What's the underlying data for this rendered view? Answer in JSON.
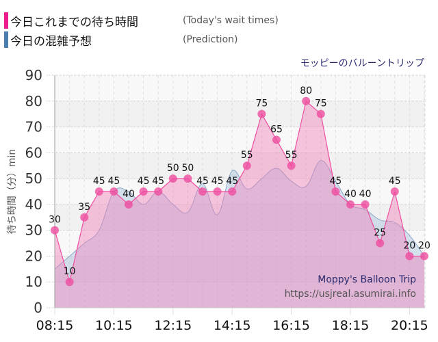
{
  "legend": {
    "items": [
      {
        "label_jp": "今日これまでの待ち時間",
        "label_en": "(Today's wait times)",
        "color": "#ee1c8c"
      },
      {
        "label_jp": "今日の混雑予想",
        "label_en": "(Prediction)",
        "color": "#4a7fb0"
      }
    ]
  },
  "attraction_name_jp": "モッピーのバルーントリップ",
  "watermark": {
    "name_en": "Moppy's Balloon Trip",
    "url": "https://usjreal.asumirai.info"
  },
  "chart_data": {
    "type": "area",
    "title": "モッピーのバルーントリップ",
    "ylabel": "待ち時間（分）min",
    "xlabel": "",
    "ylim": [
      0,
      90
    ],
    "yticks": [
      0,
      10,
      20,
      30,
      40,
      50,
      60,
      70,
      80,
      90
    ],
    "xtick_labels": [
      "08:15",
      "10:15",
      "12:15",
      "14:15",
      "16:15",
      "18:15",
      "20:15"
    ],
    "x": [
      "08:15",
      "08:45",
      "09:15",
      "09:45",
      "10:15",
      "10:45",
      "11:15",
      "11:45",
      "12:15",
      "12:45",
      "13:15",
      "13:45",
      "14:15",
      "14:45",
      "15:15",
      "15:45",
      "16:15",
      "16:45",
      "17:15",
      "17:45",
      "18:15",
      "18:45",
      "19:15",
      "19:45",
      "20:15",
      "20:45"
    ],
    "series": [
      {
        "name": "今日これまでの待ち時間 (Today's wait times)",
        "color": "#ee1c8c",
        "values": [
          30,
          10,
          35,
          45,
          45,
          40,
          45,
          45,
          50,
          50,
          45,
          45,
          45,
          55,
          75,
          65,
          55,
          80,
          75,
          45,
          40,
          40,
          25,
          45,
          20,
          20
        ],
        "data_labels": true
      },
      {
        "name": "今日の混雑予想 (Prediction)",
        "color": "#4a7fb0",
        "values": [
          15,
          20,
          25,
          30,
          45,
          45,
          40,
          45,
          40,
          37,
          48,
          36,
          53,
          46,
          50,
          54,
          49,
          47,
          57,
          49,
          40,
          38,
          34,
          33,
          28,
          20
        ]
      }
    ],
    "grid": true,
    "legend_position": "top-left"
  }
}
